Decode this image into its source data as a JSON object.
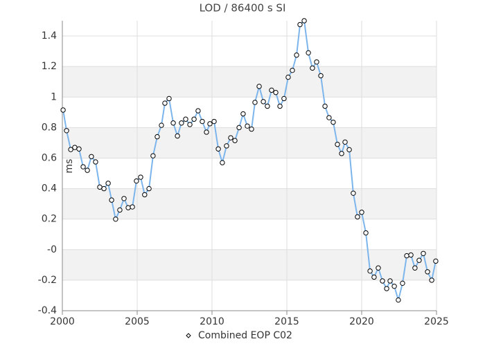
{
  "chart_data": {
    "type": "line",
    "title": "LOD / 86400 s SI",
    "ylabel": "ms",
    "series": [
      {
        "name": "Combined EOP C02",
        "color": "#7cb5ec",
        "x": [
          2000.05,
          2000.28,
          2000.56,
          2000.83,
          2001.11,
          2001.39,
          2001.67,
          2001.94,
          2002.22,
          2002.5,
          2002.78,
          2003.06,
          2003.29,
          2003.56,
          2003.84,
          2004.12,
          2004.4,
          2004.68,
          2004.95,
          2005.23,
          2005.5,
          2005.79,
          2006.06,
          2006.34,
          2006.62,
          2006.85,
          2007.13,
          2007.41,
          2007.69,
          2007.96,
          2008.24,
          2008.52,
          2008.8,
          2009.07,
          2009.35,
          2009.63,
          2009.86,
          2010.14,
          2010.42,
          2010.69,
          2010.97,
          2011.25,
          2011.53,
          2011.81,
          2012.08,
          2012.36,
          2012.64,
          2012.87,
          2013.15,
          2013.43,
          2013.7,
          2013.98,
          2014.26,
          2014.54,
          2014.81,
          2015.09,
          2015.37,
          2015.65,
          2015.88,
          2016.16,
          2016.44,
          2016.71,
          2016.99,
          2017.27,
          2017.55,
          2017.82,
          2018.1,
          2018.38,
          2018.66,
          2018.89,
          2019.17,
          2019.44,
          2019.72,
          2020.0,
          2020.28,
          2020.56,
          2020.83,
          2021.11,
          2021.39,
          2021.67,
          2021.9,
          2022.18,
          2022.45,
          2022.73,
          2023.01,
          2023.29,
          2023.56,
          2023.84,
          2024.12,
          2024.4,
          2024.68,
          2024.95
        ],
        "values": [
          0.915,
          0.78,
          0.656,
          0.67,
          0.66,
          0.543,
          0.52,
          0.61,
          0.575,
          0.41,
          0.4,
          0.435,
          0.325,
          0.2,
          0.26,
          0.335,
          0.275,
          0.28,
          0.45,
          0.475,
          0.36,
          0.4,
          0.615,
          0.74,
          0.815,
          0.96,
          0.99,
          0.83,
          0.745,
          0.83,
          0.855,
          0.82,
          0.855,
          0.91,
          0.84,
          0.77,
          0.825,
          0.84,
          0.66,
          0.57,
          0.68,
          0.733,
          0.715,
          0.8,
          0.89,
          0.81,
          0.79,
          0.965,
          1.07,
          0.97,
          0.94,
          1.045,
          1.03,
          0.94,
          0.99,
          1.13,
          1.175,
          1.275,
          1.475,
          1.5,
          1.29,
          1.19,
          1.23,
          1.14,
          0.94,
          0.865,
          0.835,
          0.69,
          0.63,
          0.705,
          0.655,
          0.37,
          0.215,
          0.245,
          0.11,
          -0.14,
          -0.18,
          -0.12,
          -0.205,
          -0.255,
          -0.205,
          -0.24,
          -0.33,
          -0.22,
          -0.04,
          -0.035,
          -0.12,
          -0.07,
          -0.025,
          -0.145,
          -0.2,
          -0.075
        ]
      }
    ],
    "xlim": [
      2000,
      2025
    ],
    "xticks": [
      2000,
      2005,
      2010,
      2015,
      2020,
      2025
    ],
    "ylim": [
      -0.4,
      1.5
    ],
    "yticks": [
      -0.4,
      -0.2,
      {
        "value": 0,
        "label": "-0"
      },
      0.2,
      0.4,
      0.6,
      0.8,
      1,
      1.2,
      1.4
    ],
    "grid": true,
    "legend": "bottom"
  }
}
